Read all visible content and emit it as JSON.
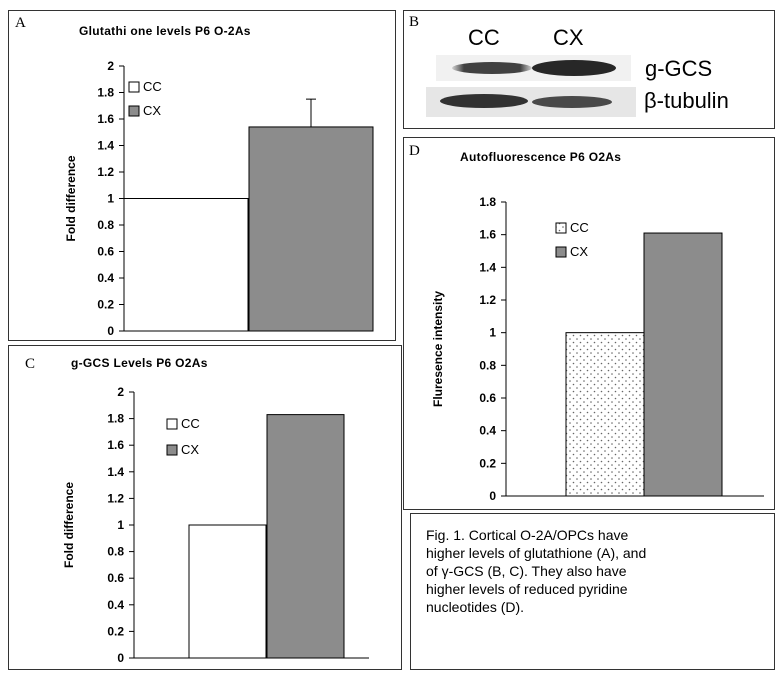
{
  "panels": {
    "a": {
      "letter": "A",
      "title": "Glutathi one levels P6 O-2As"
    },
    "b": {
      "letter": "B",
      "lanes": [
        "CC",
        "CX"
      ],
      "bands": [
        "g-GCS",
        "β-tubulin"
      ]
    },
    "c": {
      "letter": "C",
      "title": "g-GCS Levels P6 O2As"
    },
    "d": {
      "letter": "D",
      "title": "Autofluorescence P6 O2As"
    }
  },
  "caption": {
    "lines": [
      "Fig. 1. Cortical O-2A/OPCs have",
      "higher levels of glutathione (A), and",
      "of γ-GCS (B, C).  They also have",
      "higher levels of reduced pyridine",
      "nucleotides (D)."
    ]
  },
  "chart_data": [
    {
      "id": "A",
      "type": "bar",
      "title": "Glutathi one levels P6 O-2As",
      "ylabel": "Fold difference",
      "xlabel": "",
      "ylim": [
        0,
        2
      ],
      "yticks": [
        "0",
        "0.2",
        "0.4",
        "0.6",
        "0.8",
        "1",
        "1.2",
        "1.4",
        "1.6",
        "1.8",
        "2"
      ],
      "series": [
        {
          "name": "CC",
          "value": 1.0,
          "fill": "#ffffff"
        },
        {
          "name": "CX",
          "value": 1.54,
          "fill": "#8c8c8c",
          "error": 0.21
        }
      ],
      "legend": "upper-left",
      "grid": false
    },
    {
      "id": "C",
      "type": "bar",
      "title": "g-GCS Levels P6 O2As",
      "ylabel": "Fold difference",
      "xlabel": "",
      "ylim": [
        0,
        2
      ],
      "yticks": [
        "0",
        "0.2",
        "0.4",
        "0.6",
        "0.8",
        "1",
        "1.2",
        "1.4",
        "1.6",
        "1.8",
        "2"
      ],
      "series": [
        {
          "name": "CC",
          "value": 1.0,
          "fill": "#ffffff"
        },
        {
          "name": "CX",
          "value": 1.83,
          "fill": "#8c8c8c"
        }
      ],
      "legend": "upper-left",
      "grid": false
    },
    {
      "id": "D",
      "type": "bar",
      "title": "Autofluorescence P6 O2As",
      "ylabel": "Fluresence intensity",
      "xlabel": "",
      "ylim": [
        0,
        1.8
      ],
      "yticks": [
        "0",
        "0.2",
        "0.4",
        "0.6",
        "0.8",
        "1",
        "1.2",
        "1.4",
        "1.6",
        "1.8"
      ],
      "series": [
        {
          "name": "CC",
          "value": 1.0,
          "fill": "dotted"
        },
        {
          "name": "CX",
          "value": 1.61,
          "fill": "#8c8c8c"
        }
      ],
      "legend": "upper-left",
      "grid": false
    }
  ]
}
